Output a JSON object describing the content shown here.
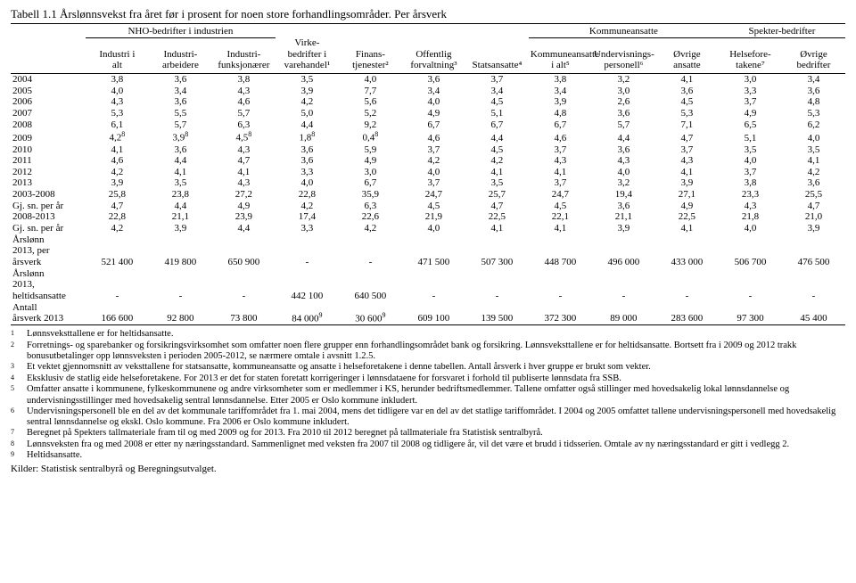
{
  "title": "Tabell 1.1 Årslønnsvekst fra året før i prosent for noen store forhandlingsområder. Per årsverk",
  "group_headers": {
    "nho": "NHO-bedrifter i industrien",
    "kommune": "Kommuneansatte",
    "spekter": "Spekter-bedrifter"
  },
  "col_lines": {
    "c0": "",
    "c1a": "Industri i",
    "c1b": "alt",
    "c2a": "Industri-",
    "c2b": "arbeidere",
    "c3a": "Industri-",
    "c3b": "funksjonærer",
    "c4a0": "Virke-",
    "c4a": "bedrifter i",
    "c4b": "varehandel¹",
    "c5a": "Finans-",
    "c5b": "tjenester²",
    "c6a": "Offentlig",
    "c6b": "forvaltning³",
    "c7a": "",
    "c7b": "Statsansatte⁴",
    "c8a": "Kommuneansatte",
    "c8b": "i alt⁵",
    "c9a": "Undervisnings-",
    "c9b": "personell⁶",
    "c10a": "Øvrige",
    "c10b": "ansatte",
    "c11a": "Helsefore-",
    "c11b": "takene⁷",
    "c12a": "Øvrige",
    "c12b": "bedrifter"
  },
  "rows": [
    {
      "label": "2004",
      "v": [
        "3,8",
        "3,6",
        "3,8",
        "3,5",
        "4,0",
        "3,6",
        "3,7",
        "3,8",
        "3,2",
        "4,1",
        "3,0",
        "3,4"
      ]
    },
    {
      "label": "2005",
      "v": [
        "4,0",
        "3,4",
        "4,3",
        "3,9",
        "7,7",
        "3,4",
        "3,4",
        "3,4",
        "3,0",
        "3,6",
        "3,3",
        "3,6"
      ]
    },
    {
      "label": "2006",
      "v": [
        "4,3",
        "3,6",
        "4,6",
        "4,2",
        "5,6",
        "4,0",
        "4,5",
        "3,9",
        "2,6",
        "4,5",
        "3,7",
        "4,8"
      ]
    },
    {
      "label": "2007",
      "v": [
        "5,3",
        "5,5",
        "5,7",
        "5,0",
        "5,2",
        "4,9",
        "5,1",
        "4,8",
        "3,6",
        "5,3",
        "4,9",
        "5,3"
      ]
    },
    {
      "label": "2008",
      "v": [
        "6,1",
        "5,7",
        "6,3",
        "4,4",
        "9,2",
        "6,7",
        "6,7",
        "6,7",
        "5,7",
        "7,1",
        "6,5",
        "6,2"
      ]
    },
    {
      "label": "2009",
      "v": [
        "4,2⁸",
        "3,9⁸",
        "4,5⁸",
        "1,8⁸",
        "0,4⁸",
        "4,6",
        "4,4",
        "4,6",
        "4,4",
        "4,7",
        "5,1",
        "4,0"
      ]
    },
    {
      "label": "2010",
      "v": [
        "4,1",
        "3,6",
        "4,3",
        "3,6",
        "5,9",
        "3,7",
        "4,5",
        "3,7",
        "3,6",
        "3,7",
        "3,5",
        "3,5"
      ]
    },
    {
      "label": "2011",
      "v": [
        "4,6",
        "4,4",
        "4,7",
        "3,6",
        "4,9",
        "4,2",
        "4,2",
        "4,3",
        "4,3",
        "4,3",
        "4,0",
        "4,1"
      ]
    },
    {
      "label": "2012",
      "v": [
        "4,2",
        "4,1",
        "4,1",
        "3,3",
        "3,0",
        "4,0",
        "4,1",
        "4,1",
        "4,0",
        "4,1",
        "3,7",
        "4,2"
      ]
    },
    {
      "label": "2013",
      "v": [
        "3,9",
        "3,5",
        "4,3",
        "4,0",
        "6,7",
        "3,7",
        "3,5",
        "3,7",
        "3,2",
        "3,9",
        "3,8",
        "3,6"
      ]
    },
    {
      "label": "2003-2008",
      "v": [
        "25,8",
        "23,8",
        "27,2",
        "22,8",
        "35,9",
        "24,7",
        "25,7",
        "24,7",
        "19,4",
        "27,1",
        "23,3",
        "25,5"
      ]
    },
    {
      "label": "Gj. sn. per år",
      "v": [
        "4,7",
        "4,4",
        "4,9",
        "4,2",
        "6,3",
        "4,5",
        "4,7",
        "4,5",
        "3,6",
        "4,9",
        "4,3",
        "4,7"
      ]
    },
    {
      "label": "2008-2013",
      "v": [
        "22,8",
        "21,1",
        "23,9",
        "17,4",
        "22,6",
        "21,9",
        "22,5",
        "22,1",
        "21,1",
        "22,5",
        "21,8",
        "21,0"
      ]
    },
    {
      "label": "Gj. sn. per år",
      "v": [
        "4,2",
        "3,9",
        "4,4",
        "3,3",
        "4,2",
        "4,0",
        "4,1",
        "4,1",
        "3,9",
        "4,1",
        "4,0",
        "3,9"
      ]
    },
    {
      "label": "Årslønn 2013, per årsverk",
      "v": [
        "521 400",
        "419 800",
        "650 900",
        "-",
        "-",
        "471 500",
        "507 300",
        "448 700",
        "496 000",
        "433 000",
        "506 700",
        "476 500"
      ]
    },
    {
      "label": "Årslønn 2013, heltidsansatte",
      "v": [
        "-",
        "-",
        "-",
        "442 100",
        "640 500",
        "-",
        "-",
        "-",
        "-",
        "-",
        "-",
        "-"
      ]
    },
    {
      "label": "Antall årsverk 2013",
      "v": [
        "166 600",
        "92 800",
        "73 800",
        "84 000⁹",
        "30 600⁹",
        "609 100",
        "139 500",
        "372 300",
        "89 000",
        "283 600",
        "97 300",
        "45 400"
      ]
    }
  ],
  "footnotes": [
    {
      "n": "1",
      "t": "Lønnsveksttallene er for heltidsansatte."
    },
    {
      "n": "2",
      "t": "Forretnings- og sparebanker og forsikringsvirksomhet som omfatter noen flere grupper enn forhandlingsområdet bank og forsikring. Lønnsveksttallene er for heltidsansatte. Bortsett fra i 2009 og 2012 trakk bonusutbetalinger opp lønnsveksten i perioden 2005-2012, se nærmere omtale i avsnitt 1.2.5."
    },
    {
      "n": "3",
      "t": "Et vektet gjennomsnitt av veksttallene for statsansatte, kommuneansatte og ansatte i helseforetakene i denne tabellen. Antall årsverk i hver gruppe er brukt som vekter."
    },
    {
      "n": "4",
      "t": "Eksklusiv de statlig eide helseforetakene. For 2013 er det for staten foretatt korrigeringer i lønnsdataene for forsvaret i forhold til publiserte lønnsdata fra SSB."
    },
    {
      "n": "5",
      "t": "Omfatter ansatte i kommunene, fylkeskommunene og andre virksomheter som er medlemmer i KS, herunder bedriftsmedlemmer. Tallene omfatter også stillinger med hovedsakelig lokal lønnsdannelse og undervisningsstillinger med hovedsakelig sentral lønnsdannelse. Etter 2005 er Oslo kommune inkludert."
    },
    {
      "n": "6",
      "t": "Undervisningspersonell ble en del av det kommunale tariffområdet fra 1. mai 2004, mens det tidligere var en del av det statlige tariffområdet. I 2004 og 2005 omfattet tallene undervisningspersonell med hovedsakelig sentral lønnsdannelse og ekskl. Oslo kommune. Fra 2006 er Oslo kommune inkludert."
    },
    {
      "n": "7",
      "t": "Beregnet på Spekters tallmateriale fram til og med 2009 og for 2013. Fra 2010 til 2012 beregnet på tallmateriale fra Statistisk sentralbyrå."
    },
    {
      "n": "8",
      "t": "Lønnsveksten fra og med 2008 er etter ny næringsstandard. Sammenlignet med veksten fra 2007 til 2008 og tidligere år, vil det være et brudd i tidsserien. Omtale av ny næringsstandard er gitt i vedlegg 2."
    },
    {
      "n": "9",
      "t": "Heltidsansatte."
    }
  ],
  "sources": "Kilder: Statistisk sentralbyrå og Beregningsutvalget."
}
